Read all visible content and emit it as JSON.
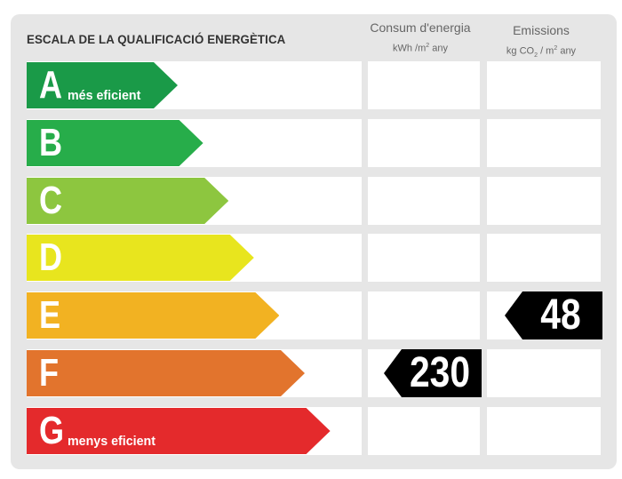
{
  "title": "ESCALA DE LA QUALIFICACIÓ ENERGÈTICA",
  "columns": {
    "consum": {
      "label": "Consum d'energia",
      "unit_a": "kWh /m",
      "unit_sup": "2",
      "unit_b": " any"
    },
    "emissions": {
      "label": "Emissions",
      "unit_a": "kg CO",
      "unit_sub": "2",
      "unit_c": " / m",
      "unit_sup": "2",
      "unit_b": " any"
    }
  },
  "ratings": [
    {
      "letter": "A",
      "sublabel": "més eficient",
      "color": "#1a9a48"
    },
    {
      "letter": "B",
      "sublabel": "",
      "color": "#27ad4a"
    },
    {
      "letter": "C",
      "sublabel": "",
      "color": "#8dc63f"
    },
    {
      "letter": "D",
      "sublabel": "",
      "color": "#e8e51e"
    },
    {
      "letter": "E",
      "sublabel": "",
      "color": "#f2b222"
    },
    {
      "letter": "F",
      "sublabel": "",
      "color": "#e2742d"
    },
    {
      "letter": "G",
      "sublabel": "menys eficient",
      "color": "#e42a2c"
    }
  ],
  "consum_value": {
    "rating": "F",
    "value": "230"
  },
  "emissions_value": {
    "rating": "E",
    "value": "48"
  }
}
